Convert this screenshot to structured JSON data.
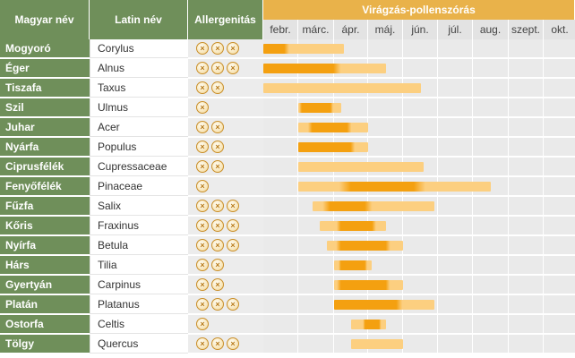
{
  "headers": {
    "hungarian": "Magyar név",
    "latin": "Latin név",
    "allergenicity": "Allergenitás",
    "pollen": "Virágzás-pollenszórás"
  },
  "months": [
    "febr.",
    "márc.",
    "ápr.",
    "máj.",
    "jún.",
    "júl.",
    "aug.",
    "szept.",
    "okt."
  ],
  "mark_symbol": "×",
  "colors": {
    "name_bg": "#6f8f5a",
    "pollen_header": "#e9b24a",
    "bar_strong": "#f4a010",
    "bar_light": "#fccf80"
  },
  "rows": [
    {
      "name": "Mogyoró",
      "latin": "Corylus",
      "allergenicity": 3,
      "start": 0.0,
      "peak_start": 0.0,
      "peak_end": 0.6,
      "end": 2.3
    },
    {
      "name": "Éger",
      "latin": "Alnus",
      "allergenicity": 3,
      "start": 0.0,
      "peak_start": 0.0,
      "peak_end": 2.0,
      "end": 3.5
    },
    {
      "name": "Tiszafa",
      "latin": "Taxus",
      "allergenicity": 2,
      "start": 0.0,
      "peak_start": 0.0,
      "peak_end": 0.0,
      "end": 4.5
    },
    {
      "name": "Szil",
      "latin": "Ulmus",
      "allergenicity": 1,
      "start": 1.0,
      "peak_start": 1.1,
      "peak_end": 1.9,
      "end": 2.2
    },
    {
      "name": "Juhar",
      "latin": "Acer",
      "allergenicity": 2,
      "start": 1.0,
      "peak_start": 1.4,
      "peak_end": 2.4,
      "end": 3.0
    },
    {
      "name": "Nyárfa",
      "latin": "Populus",
      "allergenicity": 2,
      "start": 1.0,
      "peak_start": 1.0,
      "peak_end": 2.5,
      "end": 3.0
    },
    {
      "name": "Ciprusfélék",
      "latin": "Cupressaceae",
      "allergenicity": 2,
      "start": 1.0,
      "peak_start": 0.0,
      "peak_end": 0.0,
      "end": 4.6
    },
    {
      "name": "Fenyőfélék",
      "latin": "Pinaceae",
      "allergenicity": 1,
      "start": 1.0,
      "peak_start": 2.5,
      "peak_end": 4.3,
      "end": 6.5
    },
    {
      "name": "Fűzfa",
      "latin": "Salix",
      "allergenicity": 3,
      "start": 1.4,
      "peak_start": 1.9,
      "peak_end": 2.9,
      "end": 4.9
    },
    {
      "name": "Kőris",
      "latin": "Fraxinus",
      "allergenicity": 3,
      "start": 1.6,
      "peak_start": 2.2,
      "peak_end": 3.1,
      "end": 3.5
    },
    {
      "name": "Nyírfa",
      "latin": "Betula",
      "allergenicity": 3,
      "start": 1.8,
      "peak_start": 2.2,
      "peak_end": 3.5,
      "end": 4.0
    },
    {
      "name": "Hárs",
      "latin": "Tilia",
      "allergenicity": 2,
      "start": 2.0,
      "peak_start": 2.2,
      "peak_end": 2.9,
      "end": 3.1
    },
    {
      "name": "Gyertyán",
      "latin": "Carpinus",
      "allergenicity": 2,
      "start": 2.0,
      "peak_start": 2.2,
      "peak_end": 3.5,
      "end": 4.0
    },
    {
      "name": "Platán",
      "latin": "Platanus",
      "allergenicity": 3,
      "start": 2.0,
      "peak_start": 2.0,
      "peak_end": 3.8,
      "end": 4.9
    },
    {
      "name": "Ostorfa",
      "latin": "Celtis",
      "allergenicity": 1,
      "start": 2.5,
      "peak_start": 2.9,
      "peak_end": 3.3,
      "end": 3.5
    },
    {
      "name": "Tölgy",
      "latin": "Quercus",
      "allergenicity": 3,
      "start": 2.5,
      "peak_start": 0.0,
      "peak_end": 0.0,
      "end": 4.0
    }
  ]
}
